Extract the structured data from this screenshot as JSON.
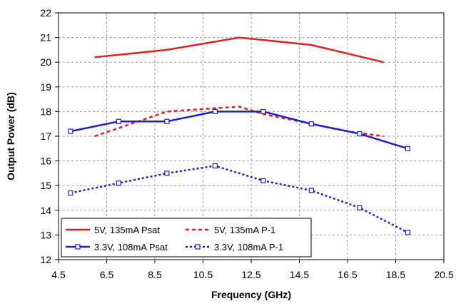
{
  "chart_data": {
    "type": "line",
    "xlabel": "Frequency (GHz)",
    "ylabel": "Output Power (dB)",
    "xlim": [
      4.5,
      20.5
    ],
    "ylim": [
      12,
      22
    ],
    "xticks": [
      "4.5",
      "6.5",
      "8.5",
      "10.5",
      "12.5",
      "14.5",
      "16.5",
      "18.5",
      "20.5"
    ],
    "yticks": [
      "12",
      "13",
      "14",
      "15",
      "16",
      "17",
      "18",
      "19",
      "20",
      "21",
      "22"
    ],
    "grid": "dashed",
    "legend_position": "bottom-left",
    "series": [
      {
        "name": "5V, 135mA Psat",
        "color": "#e02020",
        "style": "solid",
        "marker": "none",
        "x": [
          6,
          9,
          12,
          15,
          18
        ],
        "y": [
          20.2,
          20.5,
          21.0,
          20.7,
          20.0
        ]
      },
      {
        "name": "5V, 135mA P-1",
        "color": "#e02020",
        "style": "dashed",
        "marker": "none",
        "x": [
          6,
          7.5,
          9,
          10.5,
          12,
          13,
          15,
          16.5,
          18
        ],
        "y": [
          17.0,
          17.5,
          18.0,
          18.1,
          18.2,
          17.9,
          17.5,
          17.2,
          17.0
        ]
      },
      {
        "name": "3.3V, 108mA Psat",
        "color": "#1f1fc8",
        "style": "solid",
        "marker": "square",
        "x": [
          5,
          7,
          9,
          11,
          13,
          15,
          17,
          19
        ],
        "y": [
          17.2,
          17.6,
          17.6,
          18.0,
          18.0,
          17.5,
          17.1,
          16.5
        ]
      },
      {
        "name": "3.3V, 108mA P-1",
        "color": "#1f1fc8",
        "style": "dotted",
        "marker": "square",
        "x": [
          5,
          7,
          9,
          11,
          13,
          15,
          17,
          19
        ],
        "y": [
          14.7,
          15.1,
          15.5,
          15.8,
          15.2,
          14.8,
          14.1,
          13.1
        ]
      }
    ]
  }
}
